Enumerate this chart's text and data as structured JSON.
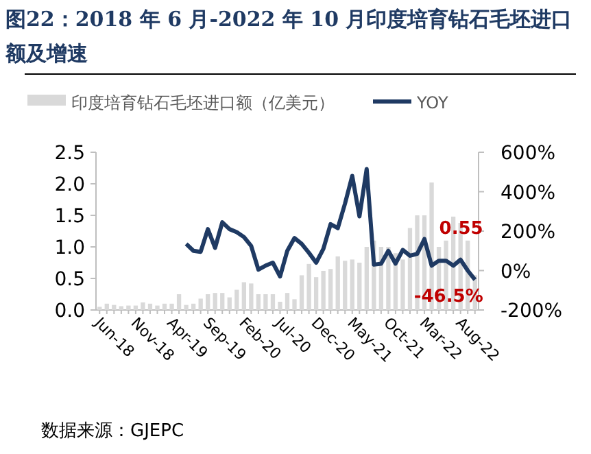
{
  "chart_data": {
    "type": "bar",
    "title": "图22：2018 年 6 月-2022 年 10 月印度培育钻石毛坯进口额及增速",
    "annotations": [
      "数据来源：GJEPC"
    ],
    "categories": [
      "Jun-18",
      null,
      null,
      null,
      null,
      "Nov-18",
      null,
      null,
      null,
      null,
      "Apr-19",
      null,
      null,
      null,
      null,
      "Sep-19",
      null,
      null,
      null,
      null,
      "Feb-20",
      null,
      null,
      null,
      null,
      "Jul-20",
      null,
      null,
      null,
      null,
      "Dec-20",
      null,
      null,
      null,
      null,
      "May-21",
      null,
      null,
      null,
      null,
      "Oct-21",
      null,
      null,
      null,
      null,
      "Mar-22",
      null,
      null,
      null,
      null,
      "Aug-22",
      null,
      null
    ],
    "series": [
      {
        "name": "印度培育钻石毛坯进口额（亿美元）",
        "color": "#d9d9d9",
        "values": [
          0.05,
          0.1,
          0.08,
          0.06,
          0.07,
          0.07,
          0.12,
          0.1,
          0.07,
          0.1,
          0.1,
          0.25,
          0.08,
          0.1,
          0.18,
          0.25,
          0.27,
          0.27,
          0.2,
          0.32,
          0.44,
          0.42,
          0.25,
          0.25,
          0.25,
          0.13,
          0.27,
          0.17,
          0.55,
          0.73,
          0.52,
          0.62,
          0.65,
          0.85,
          0.78,
          0.8,
          0.75,
          1.0,
          1.1,
          1.0,
          1.0,
          0.9,
          0.8,
          1.3,
          1.5,
          1.5,
          2.02,
          1.0,
          1.1,
          1.48,
          1.38,
          1.1,
          0.55
        ],
        "value_labels": [
          null,
          null,
          null,
          null,
          null,
          null,
          null,
          null,
          null,
          null,
          null,
          null,
          null,
          null,
          null,
          null,
          null,
          null,
          null,
          null,
          null,
          null,
          null,
          null,
          null,
          null,
          null,
          null,
          null,
          null,
          null,
          null,
          null,
          null,
          null,
          null,
          null,
          null,
          null,
          null,
          null,
          null,
          null,
          null,
          null,
          null,
          null,
          null,
          null,
          null,
          null,
          null,
          "0.55"
        ]
      },
      {
        "name": "YOY",
        "type": "line",
        "axis": "y2",
        "color": "#1f3a63",
        "values": [
          null,
          null,
          null,
          null,
          null,
          null,
          null,
          null,
          null,
          null,
          null,
          null,
          135,
          100,
          95,
          210,
          115,
          245,
          210,
          195,
          170,
          125,
          5,
          25,
          40,
          -30,
          100,
          165,
          135,
          90,
          40,
          110,
          235,
          215,
          340,
          480,
          275,
          515,
          30,
          35,
          100,
          35,
          105,
          75,
          85,
          160,
          25,
          50,
          50,
          25,
          55,
          0,
          -46.5
        ],
        "value_labels": [
          null,
          null,
          null,
          null,
          null,
          null,
          null,
          null,
          null,
          null,
          null,
          null,
          null,
          null,
          null,
          null,
          null,
          null,
          null,
          null,
          null,
          null,
          null,
          null,
          null,
          null,
          null,
          null,
          null,
          null,
          null,
          null,
          null,
          null,
          null,
          null,
          null,
          null,
          null,
          null,
          null,
          null,
          null,
          null,
          null,
          null,
          null,
          null,
          null,
          null,
          null,
          null,
          "-46.5%"
        ]
      }
    ],
    "ylim": [
      0,
      2.5
    ],
    "yticks": [
      {
        "value": 0,
        "label": "0.0"
      },
      {
        "value": 0.5,
        "label": "0.5"
      },
      {
        "value": 1,
        "label": "1.0"
      },
      {
        "value": 1.5,
        "label": "1.5"
      },
      {
        "value": 2,
        "label": "2.0"
      },
      {
        "value": 2.5,
        "label": "2.5"
      }
    ],
    "y2lim": [
      -200,
      600
    ],
    "y2ticks": [
      {
        "value": -200,
        "label": "-200%"
      },
      {
        "value": 0,
        "label": "0%"
      },
      {
        "value": 200,
        "label": "200%"
      },
      {
        "value": 400,
        "label": "400%"
      },
      {
        "value": 600,
        "label": "600%"
      }
    ],
    "legend": "top"
  }
}
